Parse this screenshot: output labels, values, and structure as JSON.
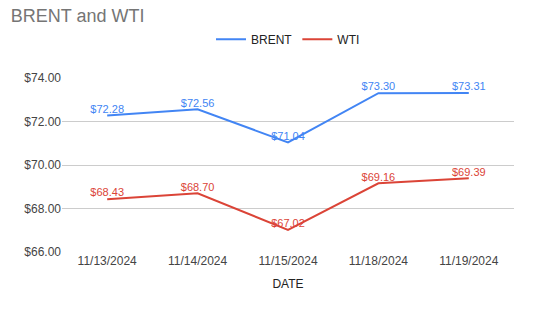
{
  "chart_data": {
    "type": "line",
    "title": "BRENT and WTI",
    "x_label": "DATE",
    "categories": [
      "11/13/2024",
      "11/14/2024",
      "11/15/2024",
      "11/18/2024",
      "11/19/2024"
    ],
    "series": [
      {
        "name": "BRENT",
        "color": "#4285f4",
        "values": [
          72.28,
          72.56,
          71.04,
          73.3,
          73.31
        ],
        "value_labels": [
          "$72.28",
          "$72.56",
          "$71.04",
          "$73.30",
          "$73.31"
        ]
      },
      {
        "name": "WTI",
        "color": "#db4437",
        "values": [
          68.43,
          68.7,
          67.02,
          69.16,
          69.39
        ],
        "value_labels": [
          "$68.43",
          "$68.70",
          "$67.02",
          "$69.16",
          "$69.39"
        ]
      }
    ],
    "ylim": [
      66,
      74
    ],
    "yticks": [
      {
        "value": 66,
        "label": "$66.00"
      },
      {
        "value": 68,
        "label": "$68.00"
      },
      {
        "value": 70,
        "label": "$70.00"
      },
      {
        "value": 72,
        "label": "$72.00"
      },
      {
        "value": 74,
        "label": "$74.00"
      }
    ],
    "grid": true,
    "legend": "top",
    "data_labels": true
  }
}
